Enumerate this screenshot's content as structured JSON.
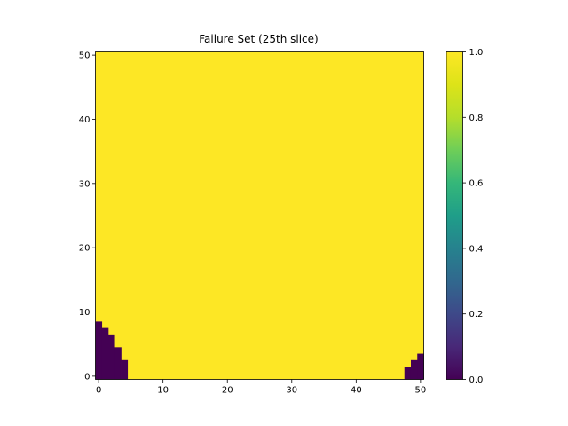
{
  "chart_data": {
    "type": "heatmap",
    "title": "Failure Set (25th slice)",
    "xlabel": "",
    "ylabel": "",
    "grid": false,
    "x_range": [
      -0.5,
      50.5
    ],
    "y_range": [
      -0.5,
      50.5
    ],
    "x_ticks": [
      "0",
      "10",
      "20",
      "30",
      "40",
      "50"
    ],
    "y_ticks": [
      "0",
      "10",
      "20",
      "30",
      "40",
      "50"
    ],
    "grid_size": 51,
    "origin": "lower",
    "background_value": 1.0,
    "low_value": 0.0,
    "low_value_columns": [
      {
        "x": 0,
        "y_max": 8
      },
      {
        "x": 1,
        "y_max": 7
      },
      {
        "x": 2,
        "y_max": 6
      },
      {
        "x": 3,
        "y_max": 4
      },
      {
        "x": 4,
        "y_max": 2
      },
      {
        "x": 48,
        "y_max": 1
      },
      {
        "x": 49,
        "y_max": 2
      },
      {
        "x": 50,
        "y_max": 3
      }
    ],
    "colormap": "viridis",
    "colorbar": {
      "range": [
        0.0,
        1.0
      ],
      "ticks": [
        "0.0",
        "0.2",
        "0.4",
        "0.6",
        "0.8",
        "1.0"
      ]
    },
    "colors": {
      "low": "#440154",
      "high": "#fde725"
    }
  }
}
